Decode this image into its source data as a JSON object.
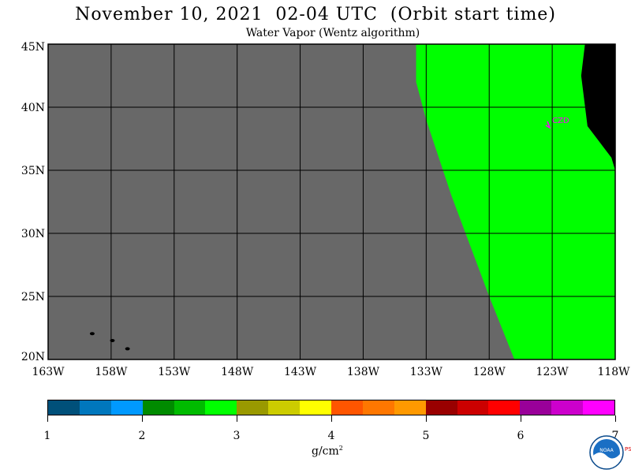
{
  "header": {
    "title": "November 10, 2021  02-04 UTC  (Orbit start time)",
    "subtitle": "Water Vapor (Wentz algorithm)"
  },
  "map": {
    "lat_range": [
      20,
      45
    ],
    "lon_range": [
      -163,
      -118
    ],
    "lat_labels": [
      "45N",
      "40N",
      "35N",
      "30N",
      "25N",
      "20N"
    ],
    "lon_labels": [
      "163W",
      "158W",
      "153W",
      "148W",
      "143W",
      "138W",
      "133W",
      "128W",
      "123W",
      "118W"
    ],
    "station_label": "CZD",
    "colors": {
      "no_data": "#686868",
      "land": "#000000",
      "station": "#ff00ff"
    }
  },
  "colorbar": {
    "labels": [
      "1",
      "2",
      "3",
      "4",
      "5",
      "6",
      "7"
    ],
    "range": [
      1,
      7
    ],
    "unit_base": "g/cm",
    "unit_exp": "2",
    "colors": [
      "#00507a",
      "#0077bd",
      "#0099ff",
      "#008b00",
      "#00bb00",
      "#00ff00",
      "#999900",
      "#cccc00",
      "#ffff00",
      "#ff5500",
      "#ff7700",
      "#ff9900",
      "#990000",
      "#cc0000",
      "#ff0000",
      "#990099",
      "#cc00cc",
      "#ff00ff"
    ]
  },
  "logo": {
    "text": "NOAA",
    "side_text": "PSL"
  }
}
